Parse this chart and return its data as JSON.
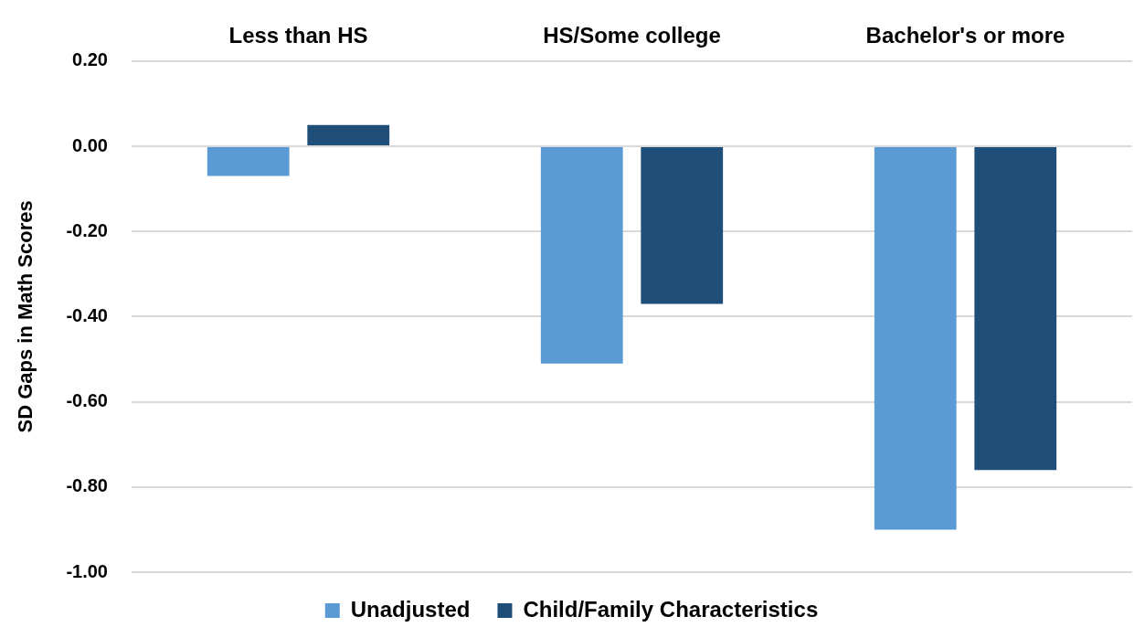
{
  "chart_data": {
    "type": "bar",
    "ylabel": "SD Gaps in Math Scores",
    "categories": [
      "Less than HS",
      "HS/Some college",
      "Bachelor's or more"
    ],
    "series": [
      {
        "name": "Unadjusted",
        "color": "#5b9bd5",
        "values": [
          -0.07,
          -0.51,
          -0.9
        ]
      },
      {
        "name": "Child/Family Characteristics",
        "color": "#1f4e79",
        "values": [
          0.05,
          -0.37,
          -0.76
        ]
      }
    ],
    "ylim": [
      -1,
      0.2
    ],
    "yticks": [
      {
        "value": 0.2,
        "label": "0.20"
      },
      {
        "value": 0,
        "label": "0.00"
      },
      {
        "value": -0.2,
        "label": "-0.20"
      },
      {
        "value": -0.4,
        "label": "-0.40"
      },
      {
        "value": -0.6,
        "label": "-0.60"
      },
      {
        "value": -0.8,
        "label": "-0.80"
      },
      {
        "value": -1,
        "label": "-1.00"
      }
    ],
    "grid": "y",
    "legend": "bottom"
  }
}
